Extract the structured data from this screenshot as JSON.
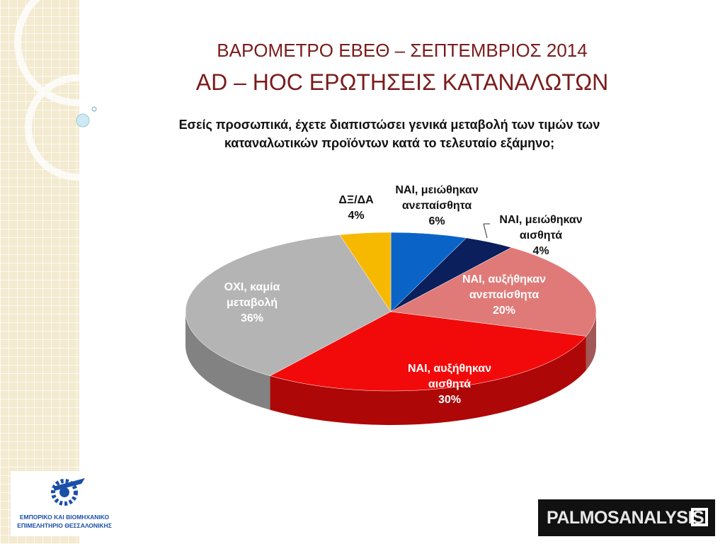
{
  "slide": {
    "title": "ΒΑΡΟΜΕΤΡΟ ΕΒΕΘ – ΣΕΠΤΕΜΒΡΙΟΣ 2014",
    "subtitle": "AD – HOC ΕΡΩΤΗΣΕΙΣ ΚΑΤΑΝΑΛΩΤΩΝ",
    "logo_left": [
      "ΕΜΠΟΡΙΚΟ ΚΑΙ ΒΙΟΜΗΧΑΝΙΚΟ",
      "ΕΠΙΜΕΛΗΤΗΡΙΟ ΘΕΣΣΑΛΟΝΙΚΗΣ"
    ],
    "logo_right": "PALMOSANALYSIS"
  },
  "chart_data": {
    "type": "pie",
    "title": "Εσείς προσωπικά, έχετε διαπιστώσει γενικά μεταβολή των τιμών των καταναλωτικών προϊόντων κατά το τελευταίο εξάμηνο;",
    "categories": [
      "ΝΑΙ, μειώθηκαν ανεπαίσθητα",
      "ΝΑΙ, μειώθηκαν αισθητά",
      "ΝΑΙ, αυξήθηκαν ανεπαίσθητα",
      "ΝΑΙ, αυξήθηκαν αισθητά",
      "ΟΧΙ, καμία μεταβολή",
      "ΔΞ/ΔΑ"
    ],
    "values": [
      6,
      4,
      20,
      30,
      36,
      4
    ],
    "value_labels": [
      "6%",
      "4%",
      "20%",
      "30%",
      "36%",
      "4%"
    ],
    "colors": [
      "#0a64c8",
      "#0a1f5c",
      "#e07a78",
      "#f20a0a",
      "#b4b4b4",
      "#f7b800"
    ]
  }
}
